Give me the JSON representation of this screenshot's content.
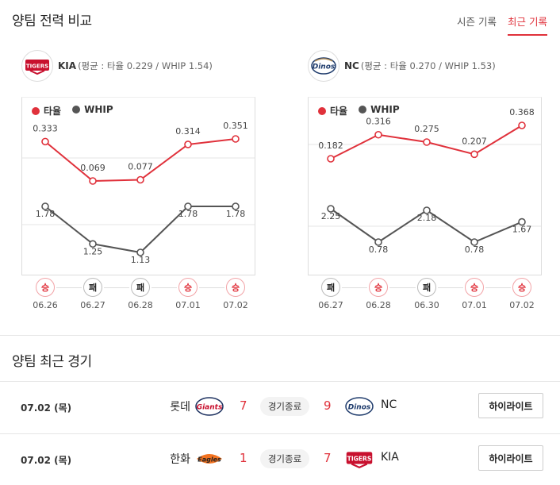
{
  "compare": {
    "title": "양팀 전력 비교",
    "tabs": [
      {
        "label": "시즌 기록",
        "active": false
      },
      {
        "label": "최근 기록",
        "active": true
      }
    ]
  },
  "teams": [
    {
      "name": "KIA",
      "stat_text": "(평균 : 타율 0.229 / WHIP 1.54)",
      "logo_text": "TIGERS",
      "legend": {
        "avg": "타율",
        "whip": "WHIP"
      },
      "avg": {
        "labels": [
          "0.333",
          "0.069",
          "0.077",
          "0.314",
          "0.351"
        ],
        "values": [
          0.333,
          0.069,
          0.077,
          0.314,
          0.351
        ]
      },
      "whip": {
        "labels": [
          "1.78",
          "1.25",
          "1.13",
          "1.78",
          "1.78"
        ],
        "values": [
          1.78,
          1.25,
          1.13,
          1.78,
          1.78
        ]
      },
      "results": [
        "승",
        "패",
        "패",
        "승",
        "승"
      ],
      "dates": [
        "06.26",
        "06.27",
        "06.28",
        "07.01",
        "07.02"
      ]
    },
    {
      "name": "NC",
      "stat_text": "(평균 : 타율 0.270 / WHIP 1.53)",
      "logo_text": "Dinos",
      "legend": {
        "avg": "타율",
        "whip": "WHIP"
      },
      "avg": {
        "labels": [
          "0.182",
          "0.316",
          "0.275",
          "0.207",
          "0.368"
        ],
        "values": [
          0.182,
          0.316,
          0.275,
          0.207,
          0.368
        ]
      },
      "whip": {
        "labels": [
          "2.25",
          "0.78",
          "2.18",
          "0.78",
          "1.67"
        ],
        "values": [
          2.25,
          0.78,
          2.18,
          0.78,
          1.67
        ]
      },
      "results": [
        "패",
        "승",
        "패",
        "승",
        "승"
      ],
      "dates": [
        "06.27",
        "06.28",
        "06.30",
        "07.01",
        "07.02"
      ]
    }
  ],
  "recent": {
    "title": "양팀 최근 경기",
    "games": [
      {
        "date": "07.02 (목)",
        "home": "롯데",
        "home_logo": "Giants",
        "home_score": "7",
        "status": "경기종료",
        "away_score": "9",
        "away": "NC",
        "away_logo": "Dinos",
        "button": "하이라이트"
      },
      {
        "date": "07.02 (목)",
        "home": "한화",
        "home_logo": "Eagles",
        "home_score": "1",
        "status": "경기종료",
        "away_score": "7",
        "away": "KIA",
        "away_logo": "TIGERS",
        "button": "하이라이트"
      }
    ]
  },
  "colors": {
    "avg": "#e0313b",
    "whip": "#555555",
    "win": "#e0313b"
  },
  "chart_data": [
    {
      "type": "line",
      "title": "",
      "x": [
        "06.26",
        "06.27",
        "06.28",
        "07.01",
        "07.02"
      ],
      "series": [
        {
          "name": "타율",
          "values": [
            0.333,
            0.069,
            0.077,
            0.314,
            0.351
          ]
        },
        {
          "name": "WHIP",
          "values": [
            1.78,
            1.25,
            1.13,
            1.78,
            1.78
          ]
        }
      ]
    },
    {
      "type": "line",
      "title": "",
      "x": [
        "06.27",
        "06.28",
        "06.30",
        "07.01",
        "07.02"
      ],
      "series": [
        {
          "name": "타율",
          "values": [
            0.182,
            0.316,
            0.275,
            0.207,
            0.368
          ]
        },
        {
          "name": "WHIP",
          "values": [
            2.25,
            0.78,
            2.18,
            0.78,
            1.67
          ]
        }
      ]
    }
  ]
}
